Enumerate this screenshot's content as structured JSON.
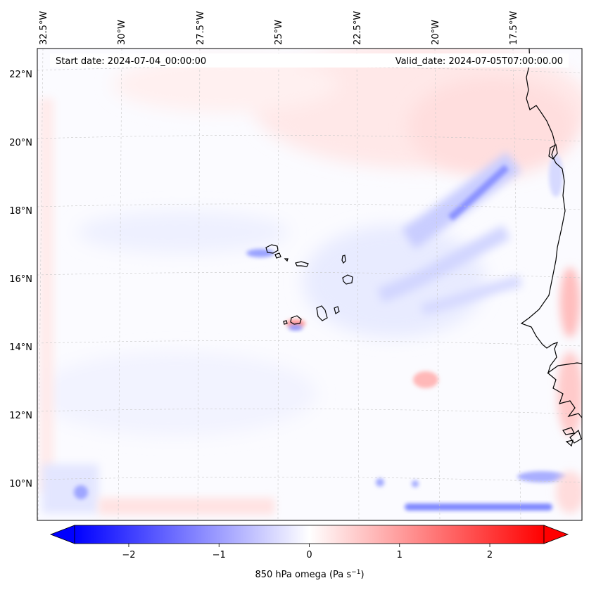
{
  "map": {
    "projection": "lambert-conformal",
    "annotations": {
      "start_date": "Start date: 2024-07-04_00:00:00",
      "valid_date": "Valid_date: 2024-07-05T07:00:00.00"
    },
    "lon_labels": [
      "32.5°W",
      "30°W",
      "27.5°W",
      "25°W",
      "22.5°W",
      "20°W",
      "17.5°W"
    ],
    "lat_labels": [
      "22°N",
      "20°N",
      "18°N",
      "16°N",
      "14°N",
      "12°N",
      "10°N"
    ],
    "gridlines": true
  },
  "colorbar": {
    "label": "850 hPa omega (Pa s",
    "label_sup": "−1",
    "label_close": ")",
    "tick_labels": [
      "−2",
      "−1",
      "0",
      "1",
      "2"
    ],
    "range": [
      -2.6,
      2.6
    ],
    "tick_values": [
      -2,
      -1,
      0,
      1,
      2
    ],
    "colors": {
      "low": "#0000ff",
      "mid": "#ffffff",
      "high": "#ff0000"
    },
    "extend": "both"
  },
  "features": {
    "coastline_color": "#000000",
    "islands": [
      "Santo Antão",
      "São Vicente",
      "Santa Luzia",
      "São Nicolau",
      "Sal",
      "Boa Vista",
      "Maio",
      "Santiago",
      "Fogo",
      "Brava"
    ]
  }
}
